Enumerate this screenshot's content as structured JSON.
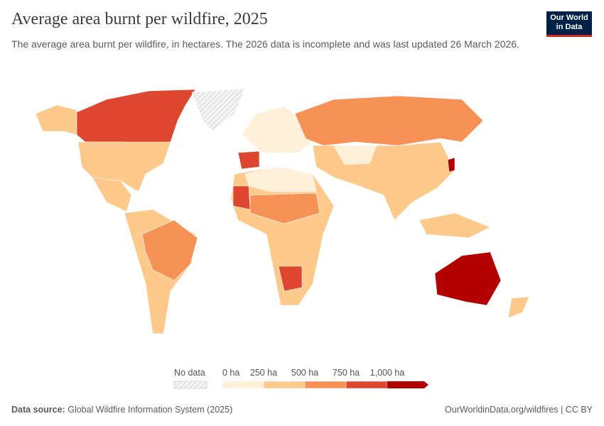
{
  "header": {
    "title": "Average area burnt per wildfire, 2025",
    "subtitle": "The average area burnt per wildfire, in hectares. The 2026 data is incomplete and was last updated 26 March 2026.",
    "logo": [
      "Our World",
      "in Data"
    ]
  },
  "legend": {
    "no_data": "No data",
    "labels": [
      "0 ha",
      "250 ha",
      "500 ha",
      "750 ha",
      "1,000 ha"
    ],
    "colors": [
      "#fef0d9",
      "#fdca8b",
      "#f79257",
      "#df462f",
      "#b30000"
    ]
  },
  "footer": {
    "source_label": "Data source:",
    "source": "Global Wildfire Information System (2025)",
    "url": "OurWorldinData.org/wildfires | CC BY"
  }
}
